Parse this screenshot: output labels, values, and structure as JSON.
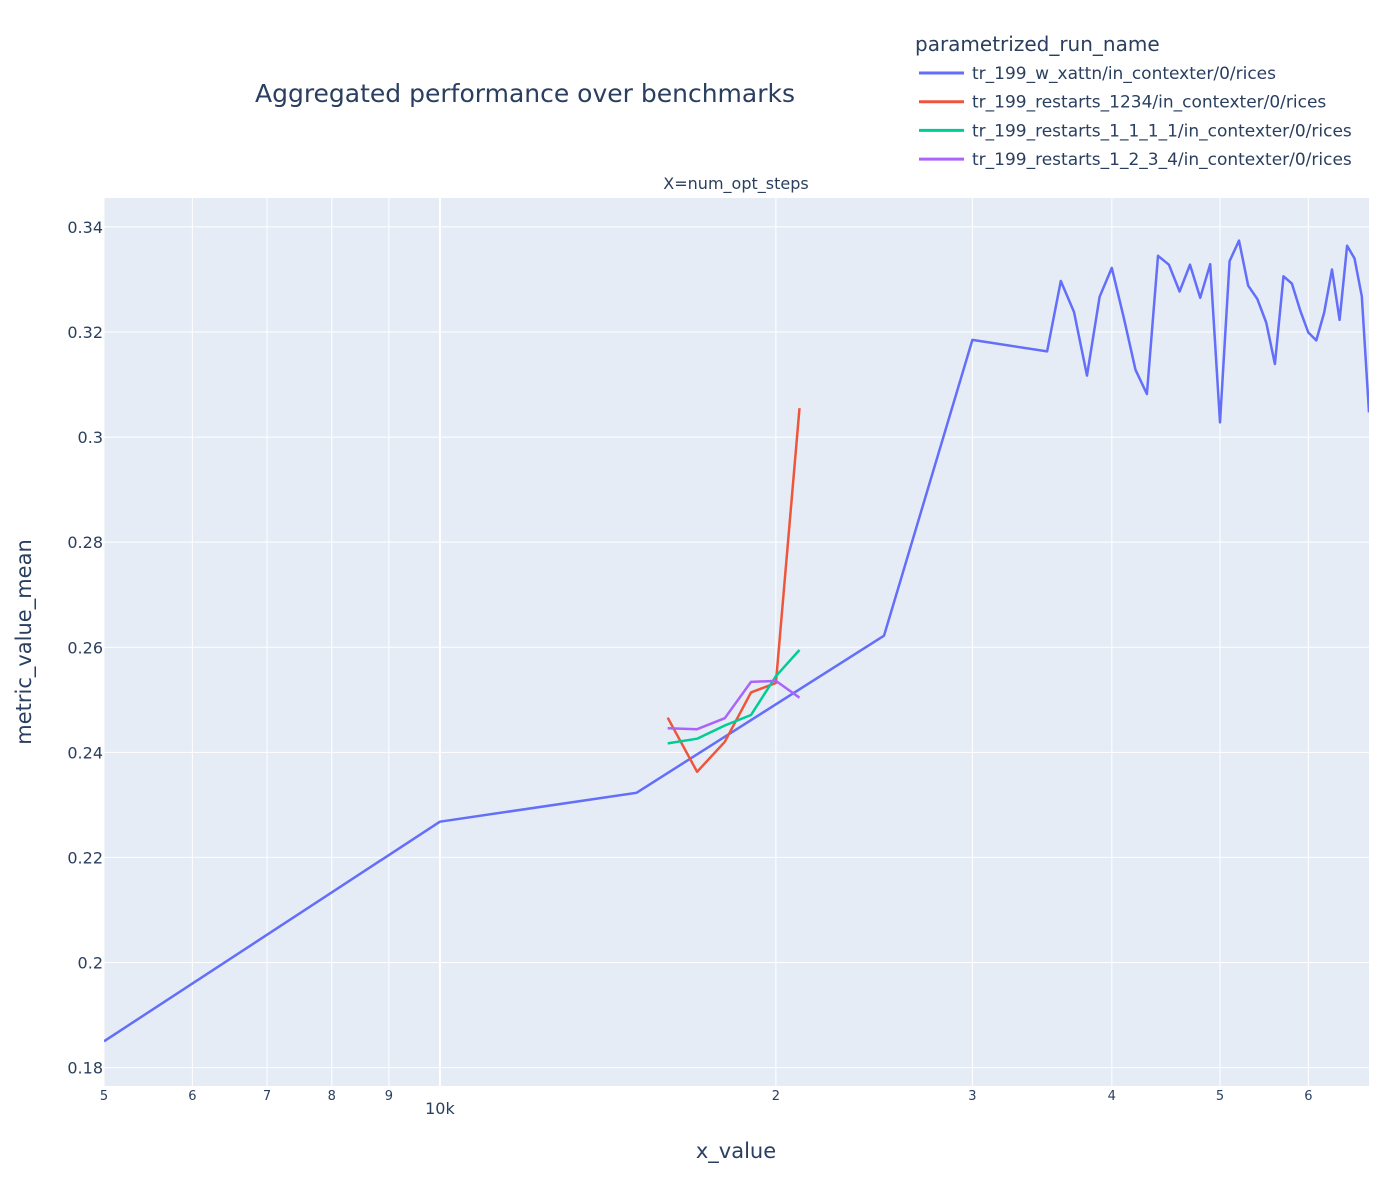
{
  "chart_data": {
    "type": "line",
    "title": "Aggregated performance over benchmarks",
    "subtitle": "X=num_opt_steps",
    "xlabel": "x_value",
    "ylabel": "metric_value_mean",
    "x_scale": "log",
    "xlim": [
      5000,
      68000
    ],
    "ylim": [
      0.1765,
      0.3455
    ],
    "grid": true,
    "legend_title": "parametrized_run_name",
    "legend_position": "top-right",
    "y_ticks": [
      {
        "value": 0.18,
        "label": "0.18"
      },
      {
        "value": 0.2,
        "label": "0.2"
      },
      {
        "value": 0.22,
        "label": "0.22"
      },
      {
        "value": 0.24,
        "label": "0.24"
      },
      {
        "value": 0.26,
        "label": "0.26"
      },
      {
        "value": 0.28,
        "label": "0.28"
      },
      {
        "value": 0.3,
        "label": "0.3"
      },
      {
        "value": 0.32,
        "label": "0.32"
      },
      {
        "value": 0.34,
        "label": "0.34"
      }
    ],
    "x_ticks": [
      {
        "value": 5000,
        "label": "5"
      },
      {
        "value": 6000,
        "label": "6"
      },
      {
        "value": 7000,
        "label": "7"
      },
      {
        "value": 8000,
        "label": "8"
      },
      {
        "value": 9000,
        "label": "9"
      },
      {
        "value": 10000,
        "label": "10k",
        "major": true
      },
      {
        "value": 20000,
        "label": "2"
      },
      {
        "value": 30000,
        "label": "3"
      },
      {
        "value": 40000,
        "label": "4"
      },
      {
        "value": 50000,
        "label": "5"
      },
      {
        "value": 60000,
        "label": "6"
      }
    ],
    "series": [
      {
        "name": "tr_199_w_xattn/in_contexter/0/rices",
        "color": "#636efa",
        "x": [
          5000,
          10000,
          15000,
          25000,
          30000,
          35000,
          36000,
          37000,
          38000,
          39000,
          40000,
          41000,
          42000,
          43000,
          44000,
          45000,
          46000,
          47000,
          48000,
          49000,
          50000,
          51000,
          52000,
          53000,
          54000,
          55000,
          56000,
          57000,
          58000,
          59000,
          60000,
          61000,
          62000,
          63000,
          64000,
          65000,
          66000,
          67000,
          68000
        ],
        "y": [
          0.185,
          0.2268,
          0.2323,
          0.2622,
          0.3185,
          0.3163,
          0.3297,
          0.3238,
          0.3117,
          0.3267,
          0.3322,
          0.3227,
          0.3128,
          0.3082,
          0.3345,
          0.3328,
          0.3277,
          0.3328,
          0.3265,
          0.3329,
          0.3028,
          0.3335,
          0.3374,
          0.3288,
          0.3263,
          0.3218,
          0.3139,
          0.3306,
          0.3292,
          0.3241,
          0.3199,
          0.3184,
          0.3237,
          0.3319,
          0.3223,
          0.3364,
          0.334,
          0.3268,
          0.3047
        ]
      },
      {
        "name": "tr_199_restarts_1234/in_contexter/0/rices",
        "color": "#EF553B",
        "x": [
          16000,
          17000,
          18000,
          19000,
          20000,
          21000
        ],
        "y": [
          0.2466,
          0.2363,
          0.242,
          0.2514,
          0.2532,
          0.3055
        ]
      },
      {
        "name": "tr_199_restarts_1_1_1_1/in_contexter/0/rices",
        "color": "#00cc96",
        "x": [
          16000,
          17000,
          18000,
          19000,
          20000,
          21000
        ],
        "y": [
          0.2417,
          0.2426,
          0.2451,
          0.2471,
          0.2545,
          0.2595
        ]
      },
      {
        "name": "tr_199_restarts_1_2_3_4/in_contexter/0/rices",
        "color": "#ab63fa",
        "x": [
          16000,
          17000,
          18000,
          19000,
          20000,
          21000
        ],
        "y": [
          0.2446,
          0.2444,
          0.2465,
          0.2534,
          0.2536,
          0.2504
        ]
      }
    ]
  }
}
